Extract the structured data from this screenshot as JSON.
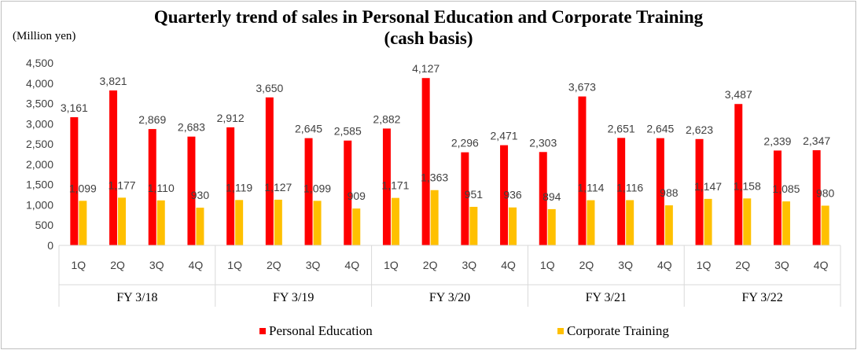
{
  "chart_data": {
    "type": "bar",
    "title_lines": [
      "Quarterly trend of sales in Personal Education and Corporate Training",
      "(cash basis)"
    ],
    "unit_label": "(Million yen)",
    "ylim": [
      0,
      4500
    ],
    "yticks": [
      0,
      500,
      1000,
      1500,
      2000,
      2500,
      3000,
      3500,
      4000,
      4500
    ],
    "ytick_labels": [
      "0",
      "500",
      "1,000",
      "1,500",
      "2,000",
      "2,500",
      "3,000",
      "3,500",
      "4,000",
      "4,500"
    ],
    "groups": [
      "FY 3/18",
      "FY 3/19",
      "FY 3/20",
      "FY 3/21",
      "FY 3/22"
    ],
    "quarters": [
      "1Q",
      "2Q",
      "3Q",
      "4Q"
    ],
    "series": [
      {
        "name": "Personal Education",
        "color": "#ff0000",
        "values": [
          3161,
          3821,
          2869,
          2683,
          2912,
          3650,
          2645,
          2585,
          2882,
          4127,
          2296,
          2471,
          2303,
          3673,
          2651,
          2645,
          2623,
          3487,
          2339,
          2347
        ],
        "labels": [
          "3,161",
          "3,821",
          "2,869",
          "2,683",
          "2,912",
          "3,650",
          "2,645",
          "2,585",
          "2,882",
          "4,127",
          "2,296",
          "2,471",
          "2,303",
          "3,673",
          "2,651",
          "2,645",
          "2,623",
          "3,487",
          "2,339",
          "2,347"
        ]
      },
      {
        "name": "Corporate Training",
        "color": "#ffc000",
        "values": [
          1099,
          1177,
          1110,
          930,
          1119,
          1127,
          1099,
          909,
          1171,
          1363,
          951,
          936,
          894,
          1114,
          1116,
          988,
          1147,
          1158,
          1085,
          980
        ],
        "labels": [
          "1,099",
          "1,177",
          "1,110",
          "930",
          "1,119",
          "1,127",
          "1,099",
          "909",
          "1,171",
          "1,363",
          "951",
          "936",
          "894",
          "1,114",
          "1,116",
          "988",
          "1,147",
          "1,158",
          "1,085",
          "980"
        ]
      }
    ],
    "legend_position": "bottom",
    "grid": false,
    "axis_color": "#d9d9d9"
  }
}
